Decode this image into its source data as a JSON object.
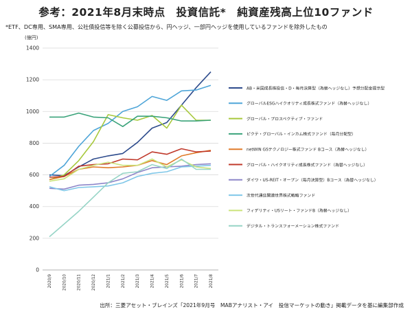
{
  "title": "参考：2021年8月末時点　投資信託*　純資産残高上位10ファンド",
  "subtitle": "*ETF、DC専用、SMA専用、公社債投信等を除く公募投信から、円ヘッジ、一部円ヘッジを使用しているファンドを除外したもの",
  "source": "出所：三菱アセット・ブレインズ「2021年9月号　MABアナリスト・アイ　投信マーケットの動き」掲載データを基に編集部作成",
  "chart_data": {
    "type": "line",
    "ylabel": "(億円)",
    "ylim": [
      0,
      1400
    ],
    "yticks": [
      0,
      200,
      400,
      600,
      800,
      1000,
      1200,
      1400
    ],
    "grid": true,
    "legend_position": "right",
    "categories": [
      "2020/9",
      "2020/10",
      "2020/11",
      "2020/12",
      "2021/1",
      "2021/2",
      "2021/3",
      "2021/4",
      "2021/5",
      "2021/6",
      "2021/7",
      "2021/8"
    ],
    "series": [
      {
        "name": "AB・米国成長株投信・D・毎月決算型（為替ヘッジなし）予想分配金提示型",
        "color": "#2d4b8c",
        "values": [
          600,
          595,
          650,
          700,
          720,
          735,
          805,
          895,
          930,
          1040,
          1150,
          1250
        ]
      },
      {
        "name": "グローバルESGハイクオリティ成長株式ファンド（為替ヘッジなし）",
        "color": "#4ea5d8",
        "values": [
          590,
          660,
          780,
          880,
          925,
          1000,
          1030,
          1095,
          1070,
          1130,
          1135,
          1165
        ]
      },
      {
        "name": "グローバル・プロスペクティブ・ファンド",
        "color": "#a7c83c",
        "values": [
          570,
          600,
          690,
          810,
          980,
          960,
          945,
          975,
          895,
          1040,
          945,
          945
        ]
      },
      {
        "name": "ピクテ・グローバル・インカム株式ファンド（毎月分配型）",
        "color": "#3aa37a",
        "values": [
          965,
          965,
          990,
          965,
          960,
          905,
          970,
          970,
          960,
          940,
          940,
          945
        ]
      },
      {
        "name": "netWIN GSテクノロジー株式ファンド Bコース（為替ヘッジなし）",
        "color": "#e07b2a",
        "values": [
          570,
          590,
          635,
          650,
          645,
          650,
          660,
          690,
          665,
          720,
          740,
          755
        ]
      },
      {
        "name": "グローバル・ハイクオリティ成長株式ファンド（為替ヘッジなし）",
        "color": "#c0392b",
        "values": [
          585,
          590,
          655,
          665,
          670,
          700,
          695,
          745,
          730,
          765,
          745,
          750
        ]
      },
      {
        "name": "ダイワ・US-REIT・オープン（毎月決算型）Bコース（為替ヘッジなし）",
        "color": "#8d86c9",
        "values": [
          515,
          510,
          535,
          540,
          550,
          575,
          615,
          645,
          650,
          655,
          665,
          670
        ]
      },
      {
        "name": "次世代通信関連世界株式戦略ファンド",
        "color": "#7fc7e8",
        "values": [
          525,
          500,
          520,
          525,
          530,
          550,
          590,
          610,
          620,
          650,
          655,
          660
        ]
      },
      {
        "name": "フィデリティ・USリート・ファンドB（為替ヘッジなし）",
        "color": "#cbe37a",
        "values": [
          560,
          575,
          635,
          660,
          680,
          660,
          660,
          700,
          650,
          695,
          650,
          640
        ]
      },
      {
        "name": "デジタル・トランスフォーメーション株式ファンド",
        "color": "#96d4c6",
        "values": [
          210,
          290,
          370,
          460,
          550,
          610,
          620,
          665,
          640,
          700,
          635,
          635
        ]
      }
    ]
  }
}
